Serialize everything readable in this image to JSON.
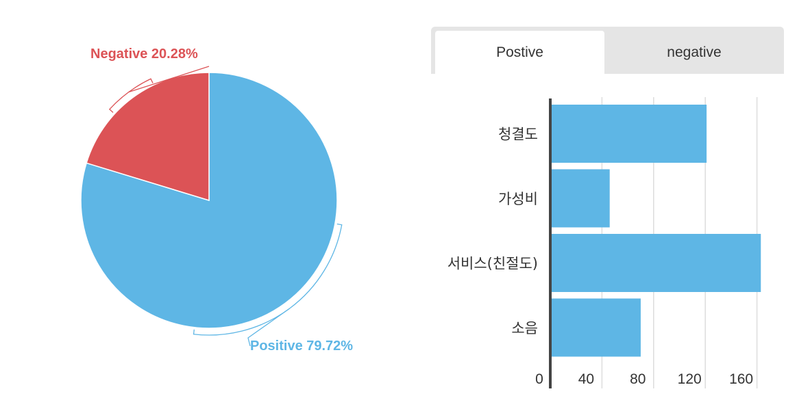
{
  "tabs": [
    {
      "label": "Postive",
      "active": true
    },
    {
      "label": "negative",
      "active": false
    }
  ],
  "colors": {
    "positive": "#5eb6e5",
    "negative": "#dc5356",
    "axis": "#444444",
    "grid": "#dddddd"
  },
  "chart_data": [
    {
      "type": "pie",
      "title": "",
      "slices": [
        {
          "name": "Positive",
          "value": 79.72,
          "label": "Positive 79.72%",
          "color": "#5eb6e5"
        },
        {
          "name": "Negative",
          "value": 20.28,
          "label": "Negative 20.28%",
          "color": "#dc5356"
        }
      ]
    },
    {
      "type": "bar",
      "orientation": "horizontal",
      "title": "",
      "categories": [
        "청결도",
        "가성비",
        "서비스(친절도)",
        "소음"
      ],
      "values": [
        121,
        46,
        163,
        70
      ],
      "xlim": [
        0,
        170
      ],
      "xticks": [
        0,
        40,
        80,
        120,
        160
      ],
      "xlabel": "",
      "ylabel": "",
      "grid": true,
      "color": "#5eb6e5"
    }
  ]
}
